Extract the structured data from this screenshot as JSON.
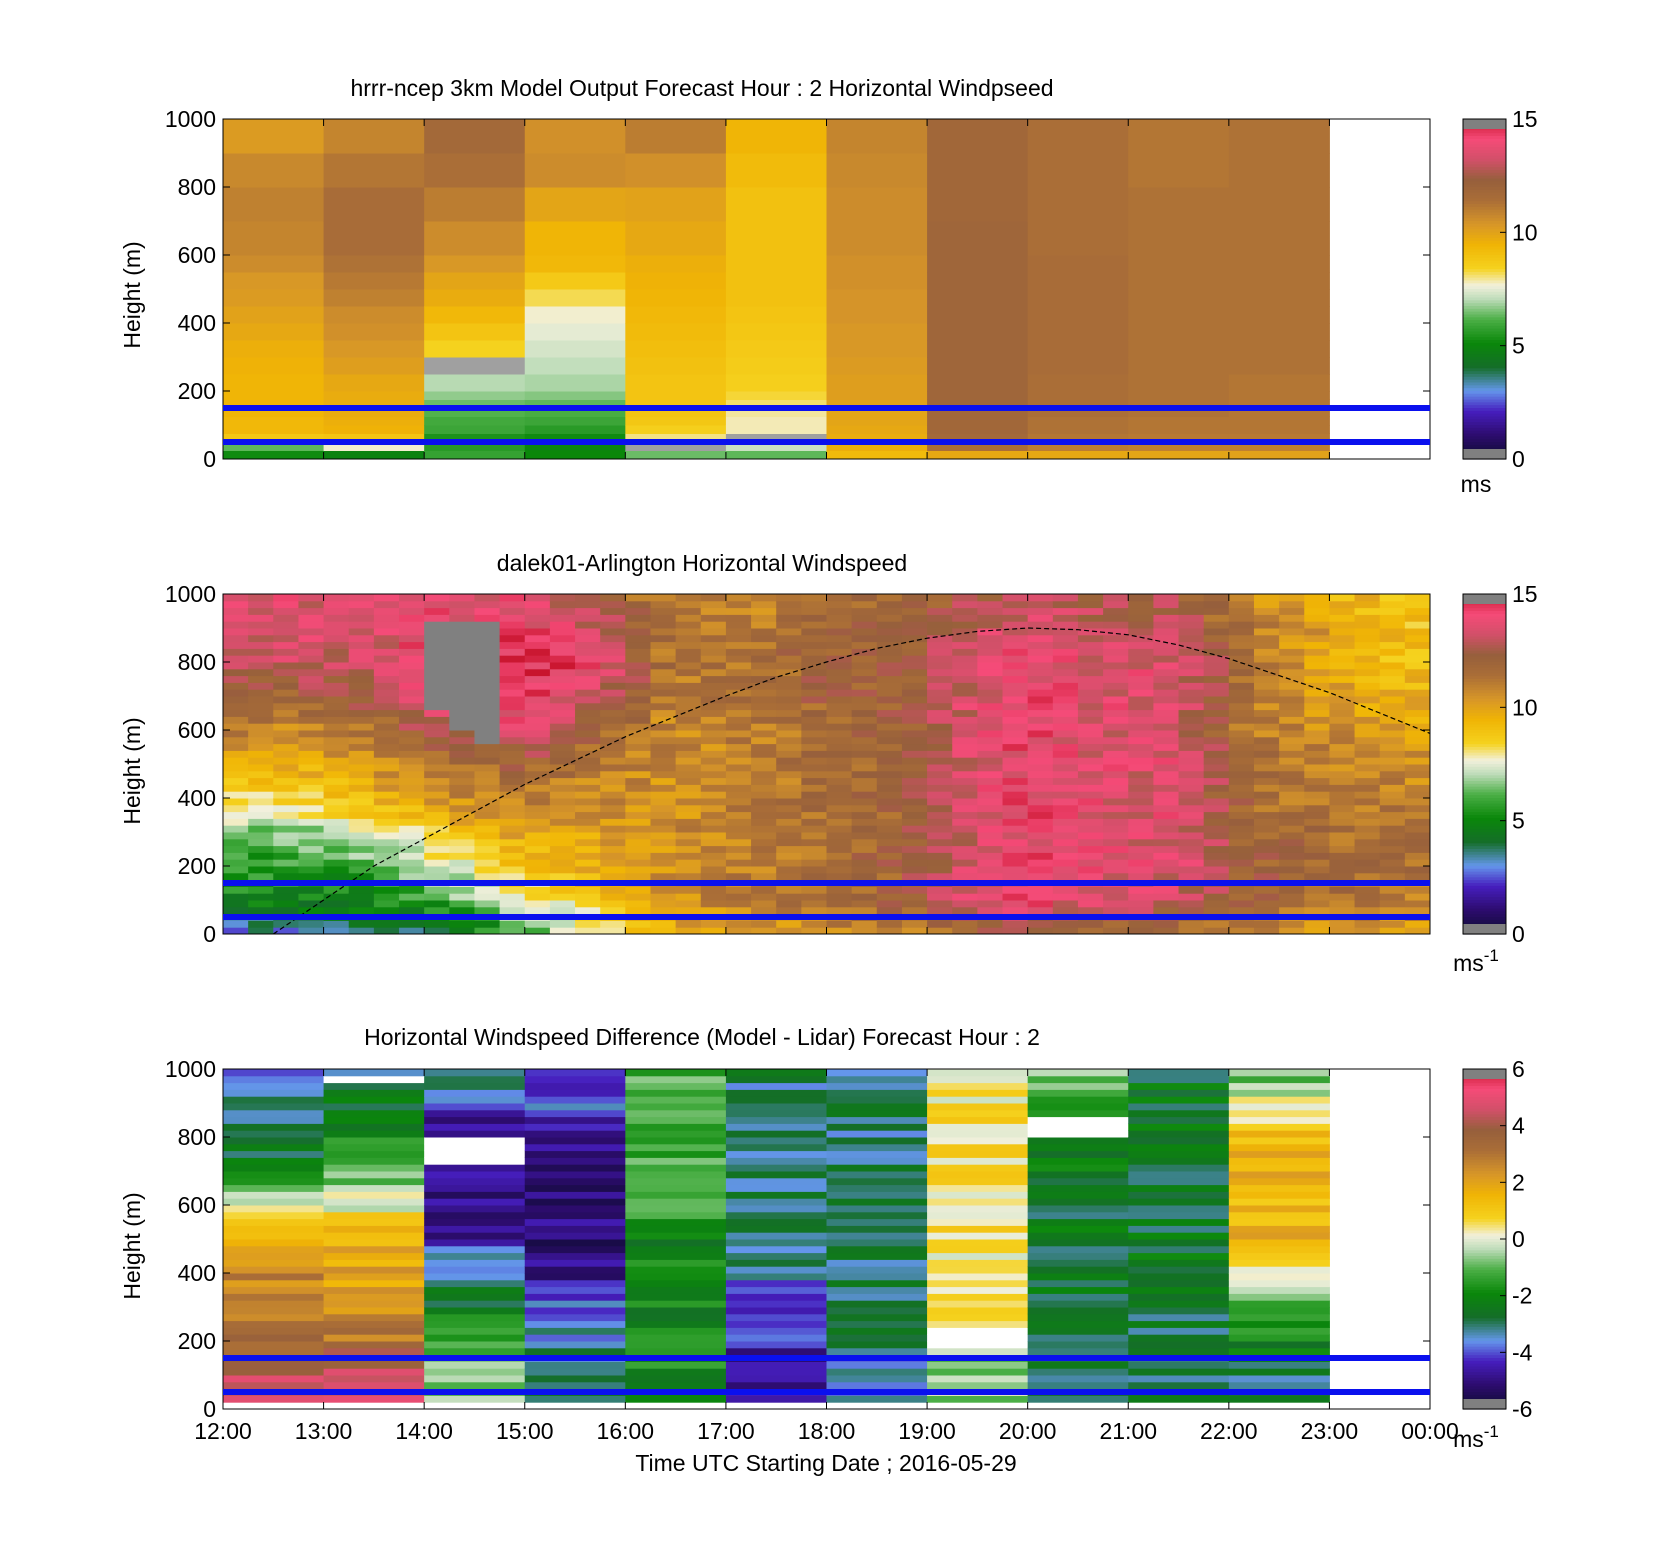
{
  "figure": {
    "xlabel": "Time UTC  Starting Date ; 2016-05-29",
    "x_ticks": [
      "12:00",
      "13:00",
      "14:00",
      "15:00",
      "16:00",
      "17:00",
      "18:00",
      "19:00",
      "20:00",
      "21:00",
      "22:00",
      "23:00",
      "00:00"
    ]
  },
  "chart_data": [
    {
      "type": "heatmap",
      "title": "hrrr-ncep 3km Model Output   Forecast Hour : 2 Horizontal Windpseed",
      "ylabel": "Height (m)",
      "ylim": [
        0,
        1000
      ],
      "y_ticks": [
        0,
        200,
        400,
        600,
        800,
        1000
      ],
      "colorbar": {
        "ticks": [
          0,
          5,
          10,
          15
        ],
        "unit": "ms",
        "range": [
          0,
          15
        ]
      },
      "reference_lines_m": [
        150,
        50
      ],
      "column_start_hours": [
        12,
        13,
        14,
        15,
        16,
        17,
        18,
        19,
        20,
        21,
        22
      ],
      "column_width_hours": 1,
      "levels_m": [
        25,
        50,
        75,
        100,
        125,
        150,
        175,
        200,
        250,
        300,
        350,
        400,
        450,
        500,
        550,
        600,
        700,
        800,
        900,
        1000
      ],
      "values": [
        [
          5.2,
          6.3,
          8.8,
          9.3,
          9.3,
          9.4,
          9.4,
          9.4,
          9.4,
          9.5,
          9.6,
          9.8,
          10.0,
          10.2,
          10.3,
          10.6,
          10.8,
          10.9,
          10.7,
          10.2
        ],
        [
          4.9,
          7.7,
          8.9,
          9.5,
          9.6,
          9.7,
          9.7,
          9.7,
          9.8,
          10.1,
          10.3,
          10.5,
          10.6,
          10.9,
          11.1,
          11.3,
          11.5,
          11.5,
          11.2,
          10.8
        ],
        [
          5.8,
          5.6,
          5.4,
          5.9,
          6.0,
          6.2,
          6.4,
          6.7,
          7.0,
          -1,
          8.4,
          8.9,
          9.3,
          9.7,
          9.9,
          10.3,
          10.6,
          11.0,
          11.4,
          11.7
        ],
        [
          5.1,
          5.0,
          5.2,
          5.6,
          5.9,
          6.1,
          6.3,
          6.6,
          6.9,
          7.1,
          7.3,
          7.5,
          7.7,
          8.2,
          8.7,
          9.3,
          9.4,
          9.9,
          10.6,
          10.5
        ],
        [
          6.4,
          -1,
          8.0,
          8.5,
          8.8,
          8.9,
          8.9,
          8.9,
          8.9,
          9.0,
          9.1,
          9.2,
          9.3,
          9.4,
          9.5,
          9.6,
          9.8,
          10.0,
          10.5,
          11.0
        ],
        [
          6.3,
          7.2,
          -1,
          7.8,
          7.8,
          7.9,
          8.1,
          8.3,
          8.5,
          8.6,
          8.7,
          8.8,
          8.9,
          9.0,
          9.0,
          9.0,
          9.0,
          9.0,
          9.2,
          9.4
        ],
        [
          9.2,
          9.6,
          9.7,
          9.8,
          9.9,
          9.9,
          10.0,
          10.1,
          10.1,
          10.2,
          10.3,
          10.3,
          10.4,
          10.4,
          10.5,
          10.5,
          10.6,
          10.6,
          10.7,
          10.8
        ],
        [
          9.8,
          11.4,
          11.7,
          11.8,
          11.8,
          11.8,
          11.9,
          11.9,
          11.9,
          11.9,
          11.9,
          11.9,
          11.9,
          11.9,
          11.9,
          11.9,
          11.9,
          11.8,
          11.8,
          11.8
        ],
        [
          9.8,
          11.0,
          11.2,
          11.3,
          11.3,
          11.4,
          11.4,
          11.4,
          11.4,
          11.5,
          11.5,
          11.5,
          11.5,
          11.5,
          11.5,
          11.5,
          11.4,
          11.4,
          11.4,
          11.4
        ],
        [
          9.9,
          10.9,
          11.1,
          11.2,
          11.2,
          11.3,
          11.3,
          11.3,
          11.3,
          11.3,
          11.3,
          11.3,
          11.3,
          11.3,
          11.3,
          11.3,
          11.3,
          11.3,
          11.2,
          11.2
        ],
        [
          10.0,
          10.9,
          11.1,
          11.2,
          11.2,
          11.2,
          11.2,
          11.2,
          11.2,
          11.3,
          11.3,
          11.3,
          11.3,
          11.3,
          11.3,
          11.3,
          11.3,
          11.3,
          11.3,
          11.3
        ]
      ]
    },
    {
      "type": "heatmap",
      "title": "dalek01-Arlington  Horizontal Windspeed",
      "ylabel": "Height (m)",
      "ylim": [
        0,
        1000
      ],
      "y_ticks": [
        0,
        200,
        400,
        600,
        800,
        1000
      ],
      "colorbar": {
        "ticks": [
          0,
          5,
          10,
          15
        ],
        "unit": "ms-1",
        "range": [
          0,
          15
        ]
      },
      "reference_lines_m": [
        150,
        50
      ],
      "column_start_hours": [
        12.0,
        12.25,
        12.5,
        12.75,
        13.0,
        13.25,
        13.5,
        13.75,
        14.0,
        14.25,
        14.5,
        14.75,
        15.0,
        15.25,
        15.5,
        15.75,
        16.0,
        16.25,
        16.5,
        16.75,
        17.0,
        17.25,
        17.5,
        17.75,
        18.0,
        18.25,
        18.5,
        18.75,
        19.0,
        19.25,
        19.5,
        19.75,
        20.0,
        20.25,
        20.5,
        20.75,
        21.0,
        21.25,
        21.5,
        21.75,
        22.0,
        22.25,
        22.5,
        22.75,
        23.0,
        23.25,
        23.5,
        23.75
      ],
      "column_width_hours": 0.25,
      "boundary_layer_height_m": {
        "hours": [
          12.5,
          13.0,
          13.5,
          14.0,
          14.5,
          15.0,
          15.5,
          16.0,
          16.5,
          17.0,
          17.5,
          18.0,
          18.5,
          19.0,
          19.5,
          20.0,
          20.5,
          21.0,
          21.5,
          22.0,
          22.5,
          23.0,
          23.5,
          24.0
        ],
        "values": [
          0,
          100,
          200,
          280,
          360,
          440,
          510,
          580,
          640,
          700,
          755,
          800,
          840,
          870,
          890,
          900,
          895,
          880,
          850,
          810,
          760,
          710,
          650,
          590
        ]
      },
      "profile_anchor_heights_m": [
        0,
        100,
        200,
        300,
        400,
        500,
        600,
        700,
        800,
        900,
        1000
      ],
      "anchor_profiles": [
        {
          "hour": 12.0,
          "values": [
            3.0,
            5.0,
            5.5,
            6.5,
            8.0,
            9.5,
            11.0,
            12.0,
            13.0,
            13.5,
            14.0
          ]
        },
        {
          "hour": 12.75,
          "values": [
            3.0,
            5.0,
            5.5,
            6.5,
            8.5,
            9.5,
            10.5,
            12.0,
            13.0,
            13.5,
            13.5
          ]
        },
        {
          "hour": 13.5,
          "values": [
            3.5,
            5.0,
            6.0,
            7.5,
            9.5,
            10.5,
            11.5,
            12.5,
            13.0,
            13.5,
            13.5
          ]
        },
        {
          "hour": 14.25,
          "values": [
            4.0,
            6.0,
            7.5,
            9.0,
            10.5,
            11.5,
            13.0,
            14.0,
            14.5,
            14.0,
            13.5
          ]
        },
        {
          "hour": 15.0,
          "values": [
            6.0,
            7.5,
            9.0,
            10.0,
            11.0,
            12.0,
            13.5,
            14.5,
            14.5,
            14.0,
            13.5
          ]
        },
        {
          "hour": 15.75,
          "values": [
            7.5,
            9.0,
            9.5,
            10.0,
            10.5,
            11.0,
            12.0,
            13.0,
            14.0,
            13.0,
            12.0
          ]
        },
        {
          "hour": 16.5,
          "values": [
            9.5,
            10.5,
            10.5,
            10.5,
            10.5,
            10.5,
            10.5,
            11.0,
            11.0,
            11.0,
            11.0
          ]
        },
        {
          "hour": 17.25,
          "values": [
            10.0,
            11.0,
            11.0,
            11.0,
            11.0,
            11.0,
            11.0,
            11.5,
            11.5,
            11.0,
            10.5
          ]
        },
        {
          "hour": 18.0,
          "values": [
            10.5,
            11.5,
            11.5,
            11.5,
            11.5,
            11.5,
            11.5,
            12.0,
            12.0,
            12.0,
            11.5
          ]
        },
        {
          "hour": 18.75,
          "values": [
            11.0,
            12.0,
            12.0,
            12.0,
            12.0,
            12.0,
            12.0,
            12.0,
            12.0,
            12.0,
            11.5
          ]
        },
        {
          "hour": 19.5,
          "values": [
            11.5,
            13.5,
            13.5,
            13.5,
            13.5,
            13.5,
            13.5,
            13.5,
            13.5,
            13.0,
            12.5
          ]
        },
        {
          "hour": 20.0,
          "values": [
            12.5,
            14.0,
            14.0,
            14.0,
            14.0,
            14.0,
            14.0,
            14.0,
            14.0,
            13.5,
            13.0
          ]
        },
        {
          "hour": 20.75,
          "values": [
            11.5,
            13.5,
            13.5,
            13.5,
            13.5,
            13.5,
            13.5,
            13.5,
            13.5,
            13.0,
            12.5
          ]
        },
        {
          "hour": 21.5,
          "values": [
            11.0,
            13.0,
            13.5,
            13.5,
            13.5,
            13.5,
            13.5,
            13.5,
            13.5,
            13.0,
            12.5
          ]
        },
        {
          "hour": 22.25,
          "values": [
            10.5,
            12.0,
            12.0,
            12.0,
            11.5,
            11.5,
            11.0,
            11.0,
            11.0,
            11.0,
            10.5
          ]
        },
        {
          "hour": 23.0,
          "values": [
            10.0,
            11.5,
            11.5,
            11.5,
            11.0,
            11.0,
            10.5,
            10.0,
            10.0,
            10.0,
            9.5
          ]
        },
        {
          "hour": 23.75,
          "values": [
            10.0,
            11.0,
            11.5,
            11.5,
            11.0,
            10.5,
            10.0,
            9.5,
            9.0,
            9.0,
            9.0
          ]
        }
      ],
      "missing_regions": [
        {
          "hour_start": 14.0,
          "hour_end": 14.25,
          "height_start_m": 650,
          "height_end_m": 920
        },
        {
          "hour_start": 14.25,
          "hour_end": 14.5,
          "height_start_m": 590,
          "height_end_m": 920
        },
        {
          "hour_start": 14.5,
          "hour_end": 14.75,
          "height_start_m": 560,
          "height_end_m": 920
        }
      ]
    },
    {
      "type": "heatmap",
      "title": "Horizontal Windspeed Difference (Model - Lidar) Forecast Hour : 2",
      "ylabel": "Height (m)",
      "ylim": [
        0,
        1000
      ],
      "y_ticks": [
        0,
        200,
        400,
        600,
        800,
        1000
      ],
      "colorbar": {
        "ticks": [
          -6,
          -4,
          -2,
          0,
          2,
          4,
          6
        ],
        "unit": "ms-1",
        "range": [
          -6,
          6
        ]
      },
      "reference_lines_m": [
        150,
        50
      ],
      "column_start_hours": [
        12,
        13,
        14,
        15,
        16,
        17,
        18,
        19,
        20,
        21,
        22
      ],
      "column_width_hours": 1,
      "profile_anchor_heights_m": [
        0,
        100,
        200,
        300,
        400,
        500,
        600,
        700,
        800,
        900,
        1000
      ],
      "anchor_profiles": [
        [
          4.5,
          4.5,
          3.5,
          3.0,
          2.5,
          1.5,
          0.5,
          -2.5,
          -3.0,
          -3.5,
          -4.0
        ],
        [
          4.5,
          4.5,
          3.0,
          2.5,
          2.0,
          1.5,
          0.0,
          -1.0,
          -2.0,
          -2.5,
          -3.0
        ],
        [
          -0.5,
          -0.5,
          -1.5,
          -2.5,
          -3.0,
          -4.5,
          -5.0,
          -5.0,
          -5.0,
          -4.0,
          -3.0
        ],
        [
          -2.5,
          -2.5,
          -3.5,
          -4.0,
          -5.0,
          -5.0,
          -5.0,
          -5.0,
          -4.5,
          -4.0,
          -4.0
        ],
        [
          -2.0,
          -2.0,
          -2.0,
          -2.0,
          -2.0,
          -2.0,
          -1.5,
          -1.5,
          -1.0,
          -1.0,
          -1.0
        ],
        [
          -5.0,
          -5.0,
          -4.5,
          -4.0,
          -3.5,
          -3.0,
          -3.0,
          -3.0,
          -3.0,
          -3.0,
          -3.0
        ],
        [
          -3.5,
          -3.5,
          -3.0,
          -3.0,
          -3.0,
          -3.0,
          -3.0,
          -3.0,
          -3.0,
          -3.0,
          -3.0
        ],
        [
          -0.5,
          -0.5,
          -0.5,
          0.5,
          0.5,
          0.5,
          0.5,
          0.5,
          0.5,
          0.5,
          0.0
        ],
        [
          -3.0,
          -3.0,
          -3.0,
          -2.5,
          -2.5,
          -2.5,
          -2.5,
          -2.5,
          -2.0,
          -1.5,
          -1.0
        ],
        [
          -3.0,
          -3.0,
          -3.0,
          -2.5,
          -2.5,
          -2.5,
          -2.5,
          -2.5,
          -2.5,
          -2.5,
          -2.5
        ],
        [
          -3.0,
          -3.0,
          -2.0,
          -1.0,
          0.5,
          1.5,
          1.5,
          1.5,
          1.5,
          0.0,
          -1.0
        ]
      ],
      "missing_regions": [
        {
          "column": 1,
          "height_start_m": 960,
          "height_end_m": 990
        },
        {
          "column": 2,
          "height_start_m": 720,
          "height_end_m": 795
        },
        {
          "column": 7,
          "height_start_m": 175,
          "height_end_m": 240
        },
        {
          "column": 8,
          "height_start_m": 790,
          "height_end_m": 860
        }
      ]
    }
  ]
}
